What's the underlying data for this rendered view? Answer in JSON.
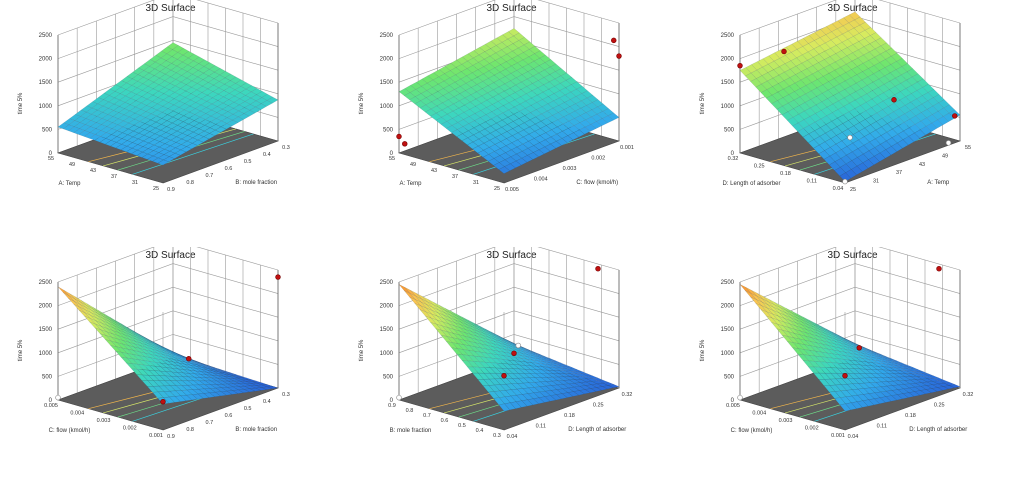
{
  "charts": [
    {
      "title": "3D Surface",
      "chart_data": {
        "type": "surface",
        "z_label": "time 5%",
        "z_ticks": [
          "0",
          "500",
          "1000",
          "1500",
          "2000",
          "2500"
        ],
        "left_axis": {
          "label": "A: Temp",
          "ticks": [
            "25",
            "31",
            "37",
            "43",
            "49",
            "55"
          ]
        },
        "right_axis": {
          "label": "B: mole fraction",
          "ticks": [
            "0.9",
            "0.8",
            "0.7",
            "0.6",
            "0.5",
            "0.4",
            "0.3"
          ]
        },
        "zlim": [
          0,
          2500
        ],
        "corners_z": [
          380,
          870,
          1450,
          550
        ],
        "design_points": []
      }
    },
    {
      "title": "3D Surface",
      "chart_data": {
        "type": "surface",
        "z_label": "time 5%",
        "z_ticks": [
          "0",
          "500",
          "1000",
          "1500",
          "2000",
          "2500"
        ],
        "left_axis": {
          "label": "A: Temp",
          "ticks": [
            "25",
            "31",
            "37",
            "43",
            "49",
            "55"
          ]
        },
        "right_axis": {
          "label": "C: flow (kmol/h)",
          "ticks": [
            "0.005",
            "0.004",
            "0.003",
            "0.002",
            "0.001"
          ]
        },
        "zlim": [
          0,
          2500
        ],
        "corners_z": [
          200,
          500,
          1750,
          1300
        ],
        "design_points": [
          {
            "a": 1.0,
            "b": 0.0,
            "z": 350,
            "side": "above"
          },
          {
            "a": 1.0,
            "b": 0.05,
            "z": 150,
            "side": "above"
          },
          {
            "a": 0.0,
            "b": 1.0,
            "z": 1800,
            "side": "above"
          },
          {
            "a": 0.05,
            "b": 1.0,
            "z": 2100,
            "side": "above"
          }
        ]
      }
    },
    {
      "title": "3D Surface",
      "chart_data": {
        "type": "surface",
        "z_label": "time 5%",
        "z_ticks": [
          "0",
          "500",
          "1000",
          "1500",
          "2000",
          "2500"
        ],
        "left_axis": {
          "label": "D: Length of adsorber",
          "ticks": [
            "0.04",
            "0.11",
            "0.18",
            "0.25",
            "0.32"
          ]
        },
        "right_axis": {
          "label": "A: Temp",
          "ticks": [
            "25",
            "31",
            "37",
            "43",
            "49",
            "55"
          ]
        },
        "zlim": [
          0,
          2500
        ],
        "corners_z": [
          30,
          550,
          2100,
          1750
        ],
        "design_points": [
          {
            "a": 1.0,
            "b": 0.0,
            "z": 1850,
            "side": "above"
          },
          {
            "a": 0.8,
            "b": 0.2,
            "z": 2100,
            "side": "above"
          },
          {
            "a": 0.5,
            "b": 0.5,
            "z": 200,
            "side": "below"
          },
          {
            "a": 0.3,
            "b": 0.7,
            "z": 950,
            "side": "above"
          },
          {
            "a": 0.05,
            "b": 1.0,
            "z": 500,
            "side": "above"
          },
          {
            "a": 0.0,
            "b": 0.0,
            "z": 30,
            "side": "below"
          },
          {
            "a": 0.0,
            "b": 0.9,
            "z": 50,
            "side": "below"
          }
        ]
      }
    },
    {
      "title": "3D Surface",
      "chart_data": {
        "type": "surface",
        "z_label": "time 5%",
        "z_ticks": [
          "0",
          "500",
          "1000",
          "1500",
          "2000",
          "2500"
        ],
        "left_axis": {
          "label": "C: flow (kmol/h)",
          "ticks": [
            "0.001",
            "0.002",
            "0.003",
            "0.004",
            "0.005"
          ]
        },
        "right_axis": {
          "label": "B: mole fraction",
          "ticks": [
            "0.9",
            "0.8",
            "0.7",
            "0.6",
            "0.5",
            "0.4",
            "0.3"
          ]
        },
        "zlim": [
          0,
          2500
        ],
        "corners_z": [
          550,
          0,
          80,
          2400
        ],
        "design_points": [
          {
            "a": 0.0,
            "b": 0.0,
            "z": 600,
            "side": "above"
          },
          {
            "a": 0.0,
            "b": 1.0,
            "z": 2350,
            "side": "above"
          },
          {
            "a": 1.0,
            "b": 0.0,
            "z": 50,
            "side": "below"
          },
          {
            "a": 0.85,
            "b": 1.0,
            "z": 80,
            "side": "above"
          }
        ]
      }
    },
    {
      "title": "3D Surface",
      "chart_data": {
        "type": "surface",
        "z_label": "time 5%",
        "z_ticks": [
          "0",
          "500",
          "1000",
          "1500",
          "2000",
          "2500"
        ],
        "left_axis": {
          "label": "B: mole fraction",
          "ticks": [
            "0.3",
            "0.4",
            "0.5",
            "0.6",
            "0.7",
            "0.8",
            "0.9"
          ]
        },
        "right_axis": {
          "label": "D: Length of adsorber",
          "ticks": [
            "0.04",
            "0.11",
            "0.18",
            "0.25",
            "0.32"
          ]
        },
        "zlim": [
          0,
          2500
        ],
        "corners_z": [
          400,
          30,
          300,
          2450
        ],
        "design_points": [
          {
            "a": 0.0,
            "b": 0.0,
            "z": 1150,
            "side": "above"
          },
          {
            "a": 0.2,
            "b": 1.0,
            "z": 2400,
            "side": "above"
          },
          {
            "a": 1.0,
            "b": 0.0,
            "z": 50,
            "side": "below"
          },
          {
            "a": 1.0,
            "b": 1.0,
            "z": 100,
            "side": "above"
          },
          {
            "a": 0.85,
            "b": 0.9,
            "z": 450,
            "side": "below"
          }
        ]
      }
    },
    {
      "title": "3D Surface",
      "chart_data": {
        "type": "surface",
        "z_label": "time 5%",
        "z_ticks": [
          "0",
          "500",
          "1000",
          "1500",
          "2000",
          "2500"
        ],
        "left_axis": {
          "label": "C: flow (kmol/h)",
          "ticks": [
            "0.001",
            "0.002",
            "0.003",
            "0.004",
            "0.005"
          ]
        },
        "right_axis": {
          "label": "D: Length of adsorber",
          "ticks": [
            "0.04",
            "0.11",
            "0.18",
            "0.25",
            "0.32"
          ]
        },
        "zlim": [
          0,
          2500
        ],
        "corners_z": [
          400,
          30,
          300,
          2450
        ],
        "design_points": [
          {
            "a": 0.0,
            "b": 0.0,
            "z": 1150,
            "side": "above"
          },
          {
            "a": 0.2,
            "b": 1.0,
            "z": 2400,
            "side": "above"
          },
          {
            "a": 1.0,
            "b": 0.0,
            "z": 50,
            "side": "below"
          },
          {
            "a": 0.85,
            "b": 0.9,
            "z": 400,
            "side": "above"
          }
        ]
      }
    }
  ]
}
